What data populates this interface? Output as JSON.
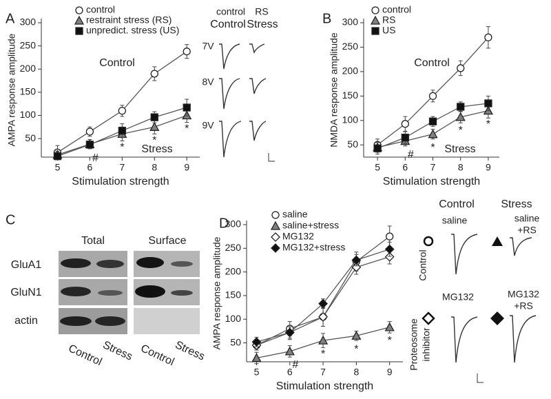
{
  "chart_data": [
    {
      "type": "line",
      "panel": "A",
      "xlabel": "Stimulation strength",
      "ylabel": "AMPA response amplitude",
      "x": [
        5,
        6,
        7,
        8,
        9
      ],
      "xlim": [
        4.5,
        9.4
      ],
      "xticks": [
        5,
        6,
        7,
        8,
        9
      ],
      "ylim": [
        10,
        300
      ],
      "yticks": [
        50,
        100,
        150,
        200,
        250,
        300
      ],
      "series": [
        {
          "name": "control",
          "marker": "circle",
          "color": "#ffffff",
          "values": [
            20,
            65,
            110,
            190,
            238
          ],
          "errors": [
            15,
            10,
            12,
            15,
            15
          ]
        },
        {
          "name": "restraint stress (RS)",
          "marker": "triangle",
          "color": "#808080",
          "values": [
            15,
            38,
            60,
            75,
            100
          ],
          "errors": [
            8,
            10,
            15,
            15,
            15
          ]
        },
        {
          "name": "unpredict. stress (US)",
          "marker": "square",
          "color": "#111111",
          "values": [
            12,
            37,
            67,
            96,
            117
          ],
          "errors": [
            8,
            8,
            15,
            12,
            18
          ]
        }
      ],
      "labels": [
        "Control",
        "Stress"
      ],
      "annotations": [
        {
          "text": "#",
          "x": 6
        },
        {
          "text": "*",
          "x": 7
        },
        {
          "text": "*",
          "x": 8
        },
        {
          "text": "*",
          "x": 9
        }
      ]
    },
    {
      "type": "line",
      "panel": "B",
      "xlabel": "Stimulation strength",
      "ylabel": "NMDA response amplitude",
      "x": [
        5,
        6,
        7,
        8,
        9
      ],
      "xlim": [
        4.5,
        9.4
      ],
      "xticks": [
        5,
        6,
        7,
        8,
        9
      ],
      "ylim": [
        25,
        300
      ],
      "yticks": [
        50,
        100,
        150,
        200,
        250,
        300
      ],
      "series": [
        {
          "name": "control",
          "marker": "circle",
          "color": "#ffffff",
          "values": [
            50,
            93,
            150,
            207,
            270
          ],
          "errors": [
            12,
            15,
            12,
            15,
            22
          ]
        },
        {
          "name": "RS",
          "marker": "triangle",
          "color": "#808080",
          "values": [
            45,
            58,
            72,
            107,
            120
          ],
          "errors": [
            10,
            10,
            10,
            12,
            15
          ]
        },
        {
          "name": "US",
          "marker": "square",
          "color": "#111111",
          "values": [
            43,
            65,
            98,
            128,
            135
          ],
          "errors": [
            12,
            12,
            10,
            10,
            15
          ]
        }
      ],
      "labels": [
        "Control",
        "Stress"
      ],
      "annotations": [
        {
          "text": "#",
          "x": 6
        },
        {
          "text": "*",
          "x": 7
        },
        {
          "text": "*",
          "x": 8
        },
        {
          "text": "*",
          "x": 9
        }
      ]
    },
    {
      "type": "line",
      "panel": "D",
      "xlabel": "Stimulation strength",
      "ylabel": "AMPA response amplitude",
      "x": [
        5,
        6,
        7,
        8,
        9
      ],
      "xlim": [
        4.7,
        9.4
      ],
      "xticks": [
        5,
        6,
        7,
        8,
        9
      ],
      "ylim": [
        10,
        300
      ],
      "yticks": [
        50,
        100,
        150,
        200,
        250,
        300
      ],
      "series": [
        {
          "name": "saline",
          "marker": "circle",
          "color": "#ffffff",
          "values": [
            45,
            80,
            105,
            222,
            275
          ],
          "errors": [
            10,
            15,
            20,
            20,
            22
          ]
        },
        {
          "name": "saline+stress",
          "marker": "triangle",
          "color": "#808080",
          "values": [
            18,
            32,
            55,
            65,
            83
          ],
          "errors": [
            12,
            12,
            15,
            10,
            12
          ]
        },
        {
          "name": "MG132",
          "marker": "diamond",
          "color": "#ffffff",
          "values": [
            45,
            72,
            105,
            210,
            232
          ],
          "errors": [
            10,
            12,
            20,
            15,
            15
          ]
        },
        {
          "name": "MG132+stress",
          "marker": "diamond",
          "color": "#111111",
          "values": [
            52,
            72,
            133,
            225,
            248
          ],
          "errors": [
            10,
            15,
            10,
            12,
            15
          ]
        }
      ],
      "annotations": [
        {
          "text": "#",
          "x": 6
        },
        {
          "text": "*",
          "x": 7
        },
        {
          "text": "*",
          "x": 8
        },
        {
          "text": "*",
          "x": 9
        }
      ]
    }
  ],
  "traces_A": {
    "headers": [
      "control",
      "RS"
    ],
    "titles": [
      "Control",
      "Stress"
    ],
    "voltages": [
      "7V",
      "8V",
      "9V"
    ]
  },
  "panel_C": {
    "letter": "C",
    "columns": [
      "Total",
      "Surface"
    ],
    "rows": [
      "GluA1",
      "GluN1",
      "actin"
    ],
    "lanes": [
      "Control",
      "Stress",
      "Control",
      "Stress"
    ]
  },
  "traces_D": {
    "columns": [
      "Control",
      "Stress"
    ],
    "labels": [
      "saline",
      "saline",
      "+RS",
      "MG132",
      "MG132",
      "+RS"
    ],
    "rows": [
      "Control",
      "Proteosome",
      "inhibitor"
    ]
  }
}
